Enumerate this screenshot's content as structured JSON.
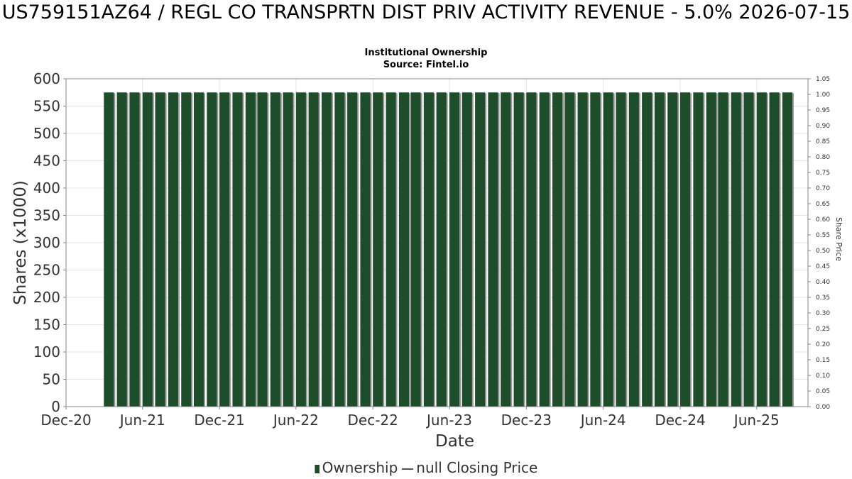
{
  "header": {
    "title": "US759151AZ64 / REGL CO TRANSPRTN DIST PRIV ACTIVITY REVENUE - 5.0% 2026-07-15",
    "subtitle_line1": "Institutional Ownership",
    "subtitle_line2": "Source: Fintel.io"
  },
  "legend": {
    "ownership": "Ownership",
    "price": "null Closing Price"
  },
  "colors": {
    "bar": "#1e4d2b",
    "bar_shadow": "#999999",
    "grid": "#e6e6e6",
    "axis": "#888888"
  },
  "chart_data": {
    "type": "bar",
    "xlabel": "Date",
    "ylabel": "Shares (x1000)",
    "y2label": "Share Price",
    "ylim": [
      0,
      600
    ],
    "y2lim": [
      0,
      1.05
    ],
    "yticks": [
      0,
      50,
      100,
      150,
      200,
      250,
      300,
      350,
      400,
      450,
      500,
      550,
      600
    ],
    "y2ticks": [
      "0.00",
      "0.05",
      "0.10",
      "0.15",
      "0.20",
      "0.25",
      "0.30",
      "0.35",
      "0.40",
      "0.45",
      "0.50",
      "0.55",
      "0.60",
      "0.65",
      "0.70",
      "0.75",
      "0.80",
      "0.85",
      "0.90",
      "0.95",
      "1.00",
      "1.05"
    ],
    "xlim": [
      "2020-12-01",
      "2025-10-01"
    ],
    "xticks": [
      {
        "date": "2020-12-01",
        "label": "Dec-20"
      },
      {
        "date": "2021-06-01",
        "label": "Jun-21"
      },
      {
        "date": "2021-12-01",
        "label": "Dec-21"
      },
      {
        "date": "2022-06-01",
        "label": "Jun-22"
      },
      {
        "date": "2022-12-01",
        "label": "Dec-22"
      },
      {
        "date": "2023-06-01",
        "label": "Jun-23"
      },
      {
        "date": "2023-12-01",
        "label": "Dec-23"
      },
      {
        "date": "2024-06-01",
        "label": "Jun-24"
      },
      {
        "date": "2024-12-01",
        "label": "Dec-24"
      },
      {
        "date": "2025-06-01",
        "label": "Jun-25"
      }
    ],
    "grid": true,
    "legend_position": "bottom",
    "series": [
      {
        "name": "Ownership",
        "x": [
          "2021-03-01",
          "2021-04-01",
          "2021-05-01",
          "2021-06-01",
          "2021-07-01",
          "2021-08-01",
          "2021-09-01",
          "2021-10-01",
          "2021-11-01",
          "2021-12-01",
          "2022-01-01",
          "2022-02-01",
          "2022-03-01",
          "2022-04-01",
          "2022-05-01",
          "2022-06-01",
          "2022-07-01",
          "2022-08-01",
          "2022-09-01",
          "2022-10-01",
          "2022-11-01",
          "2022-12-01",
          "2023-01-01",
          "2023-02-01",
          "2023-03-01",
          "2023-04-01",
          "2023-05-01",
          "2023-06-01",
          "2023-07-01",
          "2023-08-01",
          "2023-09-01",
          "2023-10-01",
          "2023-11-01",
          "2023-12-01",
          "2024-01-01",
          "2024-02-01",
          "2024-03-01",
          "2024-04-01",
          "2024-05-01",
          "2024-06-01",
          "2024-07-01",
          "2024-08-01",
          "2024-09-01",
          "2024-10-01",
          "2024-11-01",
          "2024-12-01",
          "2025-01-01",
          "2025-02-01",
          "2025-03-01",
          "2025-04-01",
          "2025-05-01",
          "2025-06-01",
          "2025-07-01",
          "2025-08-01"
        ],
        "values": [
          575,
          575,
          575,
          575,
          575,
          575,
          575,
          575,
          575,
          575,
          575,
          575,
          575,
          575,
          575,
          575,
          575,
          575,
          575,
          575,
          575,
          575,
          575,
          575,
          575,
          575,
          575,
          575,
          575,
          575,
          575,
          575,
          575,
          575,
          575,
          575,
          575,
          575,
          575,
          575,
          575,
          575,
          575,
          575,
          575,
          575,
          575,
          575,
          575,
          575,
          575,
          575,
          575,
          575
        ]
      }
    ]
  }
}
